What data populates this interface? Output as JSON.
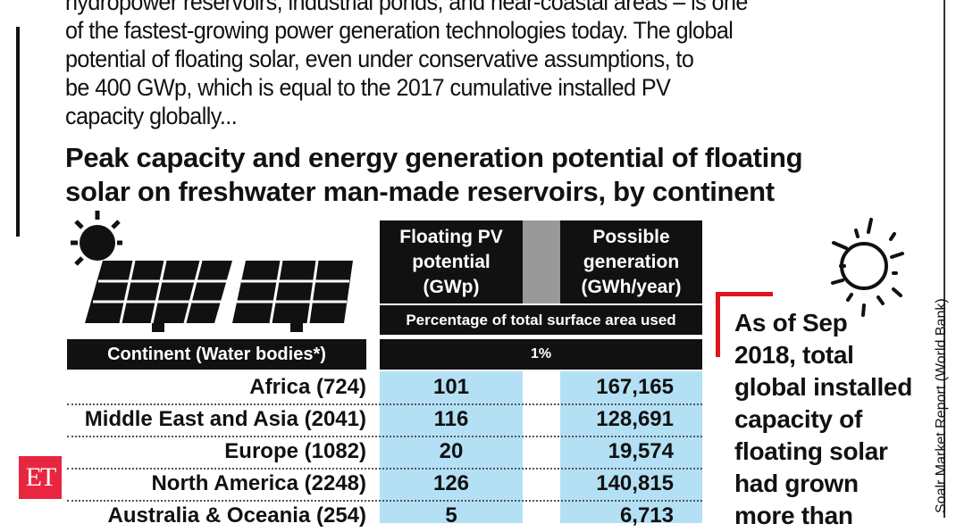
{
  "article": {
    "paragraph_lines": [
      "hydropower reservoirs, industrial ponds, and near-coastal areas – is one",
      "of the fastest-growing power generation technologies today. The global",
      "potential of floating solar, even under conservative assumptions, to",
      "be 400 GWp, which is equal to the 2017 cumulative installed PV",
      "capacity globally..."
    ]
  },
  "infographic": {
    "title_lines": [
      "Peak capacity and energy generation potential of floating",
      "solar on freshwater man-made reservoirs, by continent"
    ],
    "col1_header": [
      "Floating PV",
      "potential",
      "(GWp)"
    ],
    "col2_header": [
      "Possible",
      "generation",
      "(GWh/year)"
    ],
    "subheader": "Percentage of total surface area used",
    "continent_header": "Continent (Water bodies*)",
    "percentage": "1%",
    "rows": [
      {
        "continent": "Africa (724)",
        "gwp": "101",
        "gwh": "167,165"
      },
      {
        "continent": "Middle East and Asia (2041)",
        "gwp": "116",
        "gwh": "128,691"
      },
      {
        "continent": "Europe (1082)",
        "gwp": "20",
        "gwh": "19,574"
      },
      {
        "continent": "North America (2248)",
        "gwp": "126",
        "gwh": "140,815"
      },
      {
        "continent": "Australia & Oceania (254)",
        "gwp": "5",
        "gwh": "6,713"
      }
    ],
    "callout_lines": [
      "As of Sep",
      "2018, total",
      "global installed",
      "capacity of",
      "floating solar",
      "had grown",
      "more than"
    ],
    "source": "Soalr Market Report (World Bank)",
    "colors": {
      "cell_blue": "#b3e0f5",
      "accent_red": "#e0141e",
      "logo_red": "#e8263f"
    }
  },
  "logo": {
    "text": "ET"
  }
}
